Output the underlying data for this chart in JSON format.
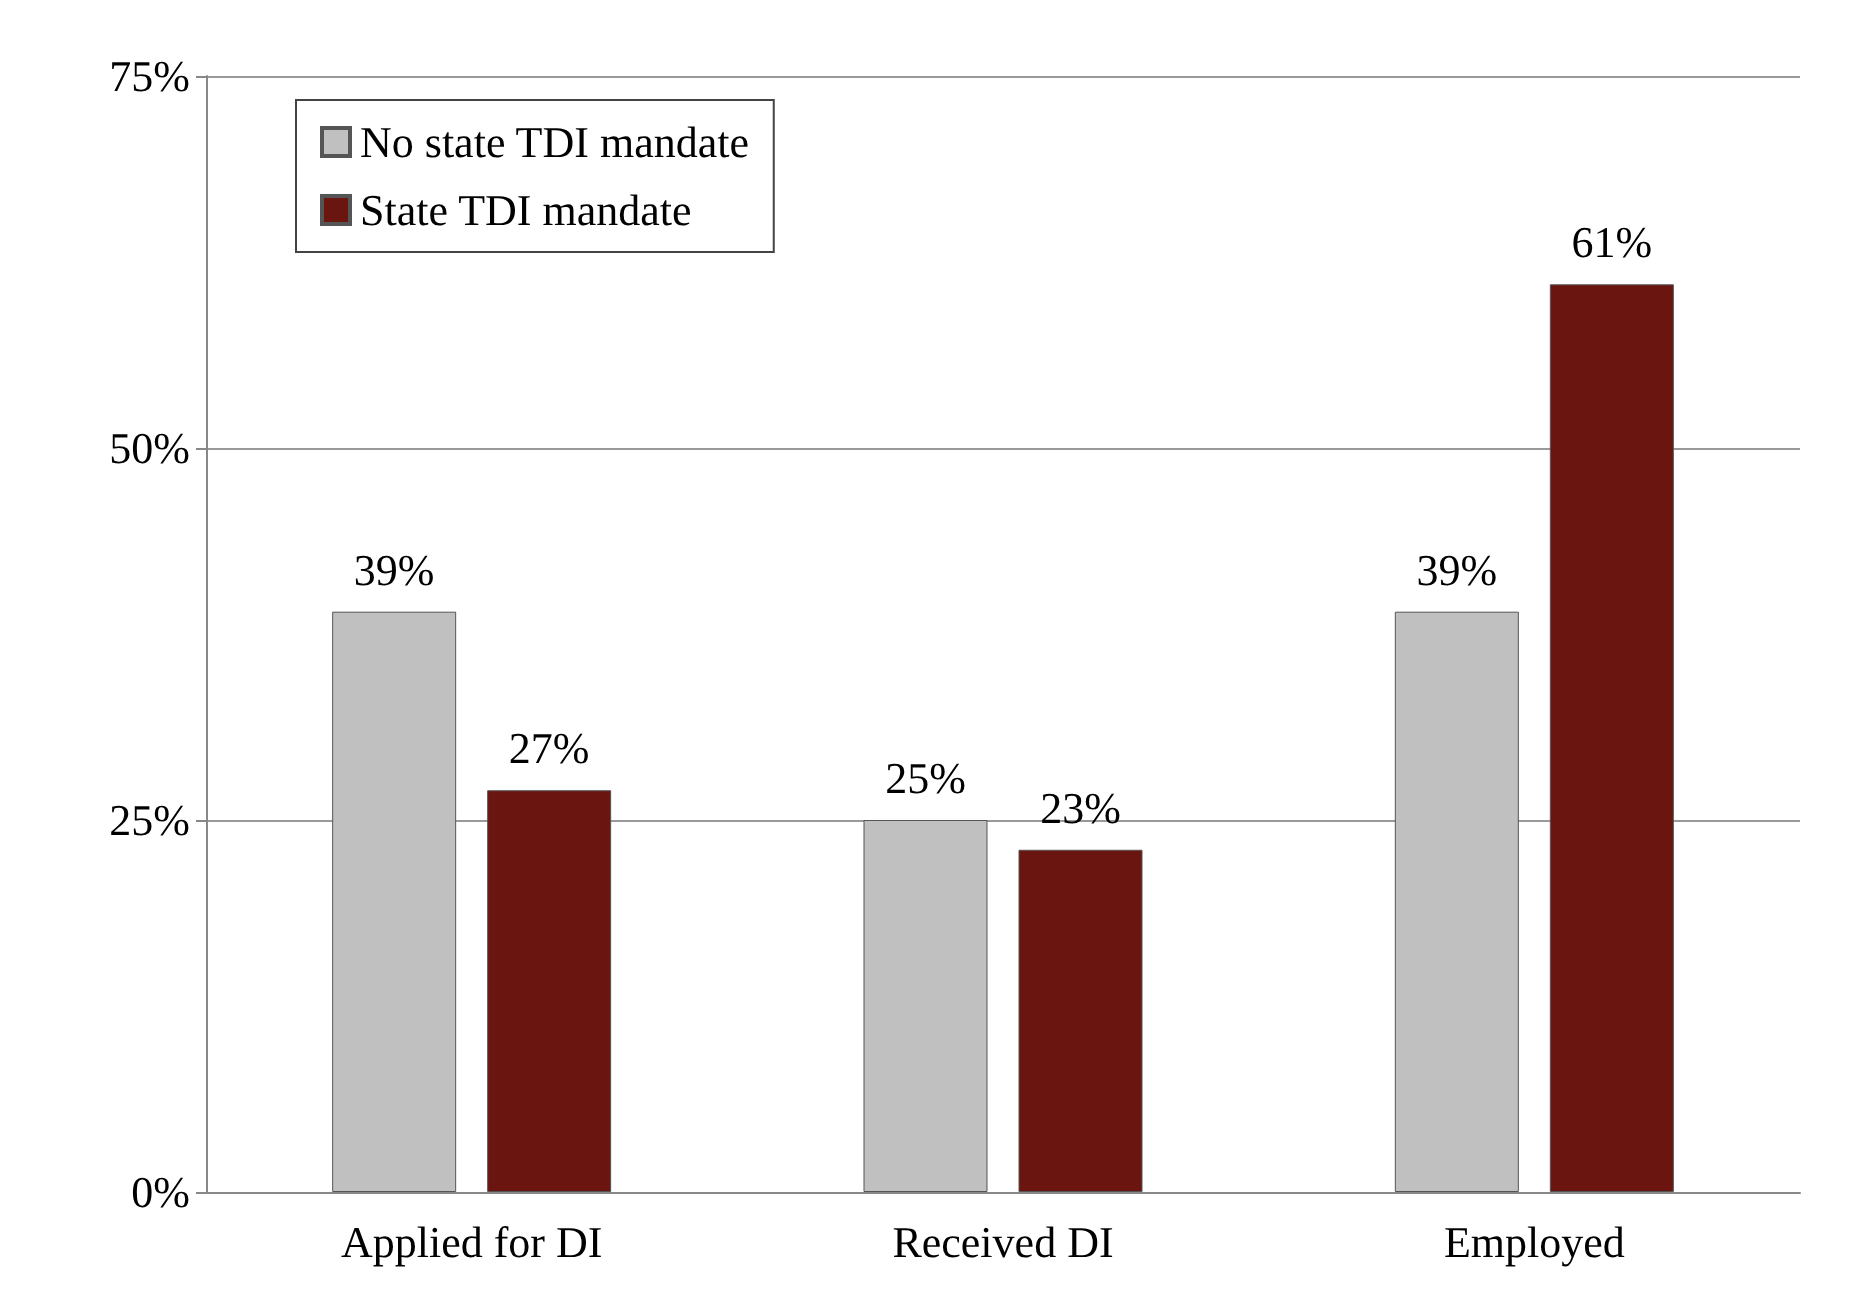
{
  "chart_data": {
    "type": "bar",
    "categories": [
      "Applied for DI",
      "Received DI",
      "Employed"
    ],
    "series": [
      {
        "name": "No state TDI mandate",
        "color": "#c0c0c0",
        "values": [
          39,
          25,
          39
        ],
        "value_labels": [
          "39%",
          "25%",
          "39%"
        ]
      },
      {
        "name": "State TDI mandate",
        "color": "#6b1510",
        "values": [
          27,
          23,
          61
        ],
        "value_labels": [
          "27%",
          "23%",
          "61%"
        ]
      }
    ],
    "ylim": [
      0,
      75
    ],
    "yticks": [
      {
        "value": 0,
        "label": "0%"
      },
      {
        "value": 25,
        "label": "25%"
      },
      {
        "value": 50,
        "label": "50%"
      },
      {
        "value": 75,
        "label": "75%"
      }
    ],
    "grid": "y",
    "legend": "top left"
  }
}
